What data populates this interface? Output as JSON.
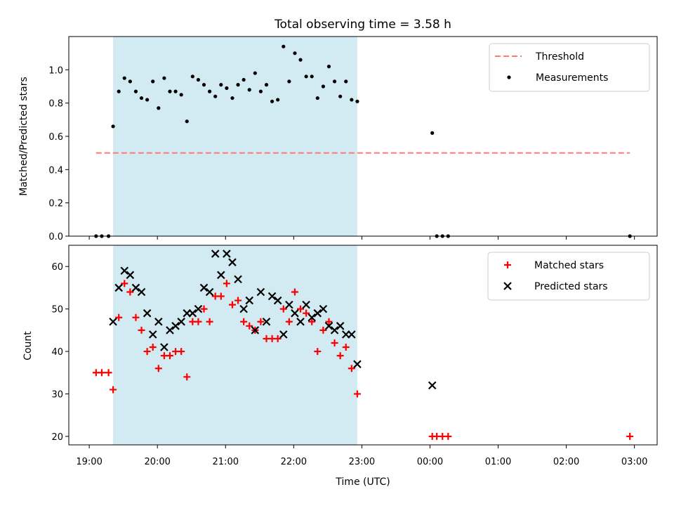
{
  "figure": {
    "title": "Total observing time = 3.58 h",
    "background": "#ffffff",
    "shade_color": "#add8e6",
    "threshold_color": "#ff7777",
    "matched_color": "#ff0000",
    "predicted_color": "#000000",
    "measure_color": "#000000"
  },
  "chart_data": [
    {
      "type": "scatter",
      "panel": "top",
      "title": "Total observing time = 3.58 h",
      "xlabel": "",
      "ylabel": "Matched/Predicted stars",
      "xlim": [
        "18:42",
        "03:20"
      ],
      "ylim": [
        0,
        1.2
      ],
      "yticks": [
        0.0,
        0.2,
        0.4,
        0.6,
        0.8,
        1.0
      ],
      "yticklabels": [
        "0.0",
        "0.2",
        "0.4",
        "0.6",
        "0.8",
        "1.0"
      ],
      "shaded_range": [
        "19:21",
        "22:56"
      ],
      "legend": {
        "placement": "top-right",
        "entries": [
          "Threshold",
          "Measurements"
        ]
      },
      "threshold": {
        "name": "Threshold",
        "y": 0.5,
        "x_range": [
          "19:06",
          "02:56"
        ],
        "style": "dashed"
      },
      "series": [
        {
          "name": "Measurements",
          "marker": "dot",
          "x": [
            "19:06",
            "19:11",
            "19:17",
            "19:21",
            "19:26",
            "19:31",
            "19:36",
            "19:41",
            "19:46",
            "19:51",
            "19:56",
            "20:01",
            "20:06",
            "20:11",
            "20:16",
            "20:21",
            "20:26",
            "20:31",
            "20:36",
            "20:41",
            "20:46",
            "20:51",
            "20:56",
            "21:01",
            "21:06",
            "21:11",
            "21:16",
            "21:21",
            "21:26",
            "21:31",
            "21:36",
            "21:41",
            "21:46",
            "21:51",
            "21:56",
            "22:01",
            "22:06",
            "22:11",
            "22:16",
            "22:21",
            "22:26",
            "22:31",
            "22:36",
            "22:41",
            "22:46",
            "22:51",
            "22:56",
            "00:02",
            "00:06",
            "00:11",
            "00:16",
            "02:56"
          ],
          "y": [
            0.0,
            0.0,
            0.0,
            0.66,
            0.87,
            0.95,
            0.93,
            0.87,
            0.83,
            0.82,
            0.93,
            0.77,
            0.95,
            0.87,
            0.87,
            0.85,
            0.69,
            0.96,
            0.94,
            0.91,
            0.87,
            0.84,
            0.91,
            0.89,
            0.83,
            0.91,
            0.94,
            0.88,
            0.98,
            0.87,
            0.91,
            0.81,
            0.82,
            1.14,
            0.93,
            1.1,
            1.06,
            0.96,
            0.96,
            0.83,
            0.9,
            1.02,
            0.93,
            0.84,
            0.93,
            0.82,
            0.81,
            0.62,
            0.0,
            0.0,
            0.0,
            0.0
          ]
        }
      ]
    },
    {
      "type": "scatter",
      "panel": "bottom",
      "title": "",
      "xlabel": "Time (UTC)",
      "ylabel": "Count",
      "xlim": [
        "18:42",
        "03:20"
      ],
      "ylim": [
        18,
        65
      ],
      "yticks": [
        20,
        30,
        40,
        50,
        60
      ],
      "xticks": [
        "19:00",
        "20:00",
        "21:00",
        "22:00",
        "23:00",
        "00:00",
        "01:00",
        "02:00",
        "03:00"
      ],
      "shaded_range": [
        "19:21",
        "22:56"
      ],
      "legend": {
        "placement": "top-right",
        "entries": [
          "Matched stars",
          "Predicted stars"
        ]
      },
      "series": [
        {
          "name": "Matched stars",
          "marker": "plus",
          "x": [
            "19:06",
            "19:11",
            "19:17",
            "19:21",
            "19:26",
            "19:31",
            "19:36",
            "19:41",
            "19:46",
            "19:51",
            "19:56",
            "20:01",
            "20:06",
            "20:11",
            "20:16",
            "20:21",
            "20:26",
            "20:31",
            "20:36",
            "20:41",
            "20:46",
            "20:51",
            "20:56",
            "21:01",
            "21:06",
            "21:11",
            "21:16",
            "21:21",
            "21:26",
            "21:31",
            "21:36",
            "21:41",
            "21:46",
            "21:51",
            "21:56",
            "22:01",
            "22:06",
            "22:11",
            "22:16",
            "22:21",
            "22:26",
            "22:31",
            "22:36",
            "22:41",
            "22:46",
            "22:51",
            "22:56",
            "00:02",
            "00:06",
            "00:11",
            "00:16",
            "02:56"
          ],
          "y": [
            35,
            35,
            35,
            31,
            48,
            56,
            54,
            48,
            45,
            40,
            41,
            36,
            39,
            39,
            40,
            40,
            34,
            47,
            47,
            50,
            47,
            53,
            53,
            56,
            51,
            52,
            47,
            46,
            45,
            47,
            43,
            43,
            43,
            50,
            47,
            54,
            50,
            49,
            47,
            40,
            45,
            47,
            42,
            39,
            41,
            36,
            30,
            20,
            20,
            20,
            20,
            20
          ]
        },
        {
          "name": "Predicted stars",
          "marker": "x",
          "x": [
            "19:21",
            "19:26",
            "19:31",
            "19:36",
            "19:41",
            "19:46",
            "19:51",
            "19:56",
            "20:01",
            "20:06",
            "20:11",
            "20:16",
            "20:21",
            "20:26",
            "20:31",
            "20:36",
            "20:41",
            "20:46",
            "20:51",
            "20:56",
            "21:01",
            "21:06",
            "21:11",
            "21:16",
            "21:21",
            "21:26",
            "21:31",
            "21:36",
            "21:41",
            "21:46",
            "21:51",
            "21:56",
            "22:01",
            "22:06",
            "22:11",
            "22:16",
            "22:21",
            "22:26",
            "22:31",
            "22:36",
            "22:41",
            "22:46",
            "22:51",
            "22:56",
            "00:02"
          ],
          "y": [
            47,
            55,
            59,
            58,
            55,
            54,
            49,
            44,
            47,
            41,
            45,
            46,
            47,
            49,
            49,
            50,
            55,
            54,
            63,
            58,
            63,
            61,
            57,
            50,
            52,
            45,
            54,
            47,
            53,
            52,
            44,
            51,
            49,
            47,
            51,
            48,
            49,
            50,
            46,
            45,
            46,
            44,
            44,
            37,
            32
          ]
        }
      ]
    }
  ]
}
